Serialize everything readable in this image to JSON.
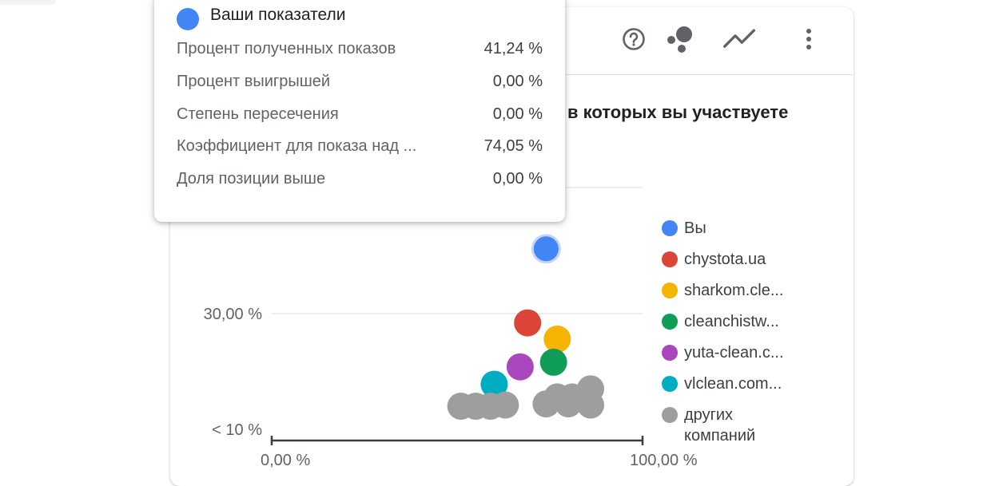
{
  "card": {
    "title_fragment": "в которых вы участвуете",
    "toolbar": {
      "help_icon": "help-circle-icon",
      "bubble_icon": "bubble-chart-icon",
      "trend_icon": "trending-line-icon",
      "more_icon": "more-vertical-icon"
    }
  },
  "tooltip": {
    "title": "Ваши показатели",
    "dot_color": "#4285f4",
    "rows": [
      {
        "label": "Процент полученных показов",
        "value": "41,24 %"
      },
      {
        "label": "Процент выигрышей",
        "value": "0,00 %"
      },
      {
        "label": "Степень пересечения",
        "value": "0,00 %"
      },
      {
        "label": "Коэффициент для показа над ...",
        "value": "74,05 %"
      },
      {
        "label": "Доля позиции выше",
        "value": "0,00 %"
      }
    ]
  },
  "chart_data": {
    "type": "scatter",
    "y_ticks": [
      "< 10 %",
      "30,00 %"
    ],
    "x_ticks": [
      "0,00 %",
      "100,00 %"
    ],
    "series": [
      {
        "name": "Вы",
        "color": "#4285f4",
        "points": [
          {
            "x": 74,
            "y": 41.2
          }
        ]
      },
      {
        "name": "chystota.ua",
        "color": "#db4437",
        "points": [
          {
            "x": 69,
            "y": 28.4
          }
        ]
      },
      {
        "name": "sharkom.cle...",
        "color": "#f4b400",
        "points": [
          {
            "x": 77,
            "y": 25.6
          }
        ]
      },
      {
        "name": "cleanchistw...",
        "color": "#0f9d58",
        "points": [
          {
            "x": 76,
            "y": 21.6
          }
        ]
      },
      {
        "name": "yuta-clean.c...",
        "color": "#ab47bc",
        "points": [
          {
            "x": 67,
            "y": 20.8
          }
        ]
      },
      {
        "name": "vlclean.com...",
        "color": "#00acc1",
        "points": [
          {
            "x": 60,
            "y": 17.8
          }
        ]
      },
      {
        "name": "других компаний",
        "color": "#9e9e9e",
        "points": [
          {
            "x": 51,
            "y": 14.0
          },
          {
            "x": 55,
            "y": 14.0
          },
          {
            "x": 59,
            "y": 14.0
          },
          {
            "x": 63,
            "y": 14.2
          },
          {
            "x": 74,
            "y": 14.4
          },
          {
            "x": 77,
            "y": 15.6
          },
          {
            "x": 81,
            "y": 15.6
          },
          {
            "x": 86,
            "y": 17.0
          },
          {
            "x": 80,
            "y": 14.4
          },
          {
            "x": 86,
            "y": 14.2
          }
        ]
      }
    ]
  }
}
